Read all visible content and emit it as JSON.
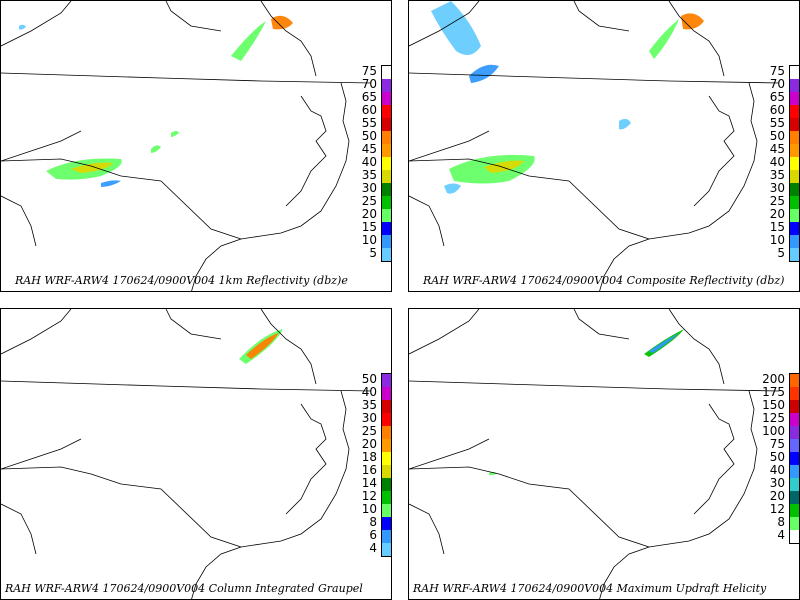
{
  "panels": [
    {
      "id": "p0",
      "caption": "RAH WRF-ARW4 170624/0900V004  1km Reflectivity (dbz)e",
      "legend": {
        "labels": [
          "75",
          "70",
          "65",
          "60",
          "55",
          "50",
          "45",
          "40",
          "35",
          "30",
          "25",
          "20",
          "15",
          "10",
          "5"
        ],
        "colors": [
          "#ffffff",
          "#8a2be2",
          "#cc00cc",
          "#ff0000",
          "#d60000",
          "#ff7f00",
          "#ff9900",
          "#ffff00",
          "#d9d900",
          "#008000",
          "#00c000",
          "#66ff66",
          "#0000ff",
          "#3399ff",
          "#66ccff"
        ]
      }
    },
    {
      "id": "p1",
      "caption": "RAH WRF-ARW4 170624/0900V004  Composite Reflectivity (dbz)",
      "legend": {
        "labels": [
          "75",
          "70",
          "65",
          "60",
          "55",
          "50",
          "45",
          "40",
          "35",
          "30",
          "25",
          "20",
          "15",
          "10",
          "5"
        ],
        "colors": [
          "#ffffff",
          "#8a2be2",
          "#cc00cc",
          "#ff0000",
          "#d60000",
          "#ff7f00",
          "#ff9900",
          "#ffff00",
          "#d9d900",
          "#008000",
          "#00c000",
          "#66ff66",
          "#0000ff",
          "#3399ff",
          "#66ccff"
        ]
      }
    },
    {
      "id": "p2",
      "caption": "RAH WRF-ARW4 170624/0900V004  Column Integrated Graupel",
      "legend": {
        "labels": [
          "50",
          "40",
          "35",
          "30",
          "25",
          "20",
          "18",
          "16",
          "14",
          "12",
          "10",
          "8",
          "6",
          "4"
        ],
        "colors": [
          "#8a2be2",
          "#cc00cc",
          "#d60000",
          "#ff0000",
          "#ff7f00",
          "#ff9900",
          "#ffff00",
          "#d9d900",
          "#008000",
          "#00c000",
          "#66ff66",
          "#0000ff",
          "#3399ff",
          "#66ccff"
        ]
      }
    },
    {
      "id": "p3",
      "caption": "RAH WRF-ARW4 170624/0900V004  Maximum Updraft Helicity",
      "legend": {
        "labels": [
          "200",
          "175",
          "150",
          "125",
          "100",
          "75",
          "50",
          "40",
          "30",
          "20",
          "12",
          "8",
          "4"
        ],
        "colors": [
          "#ff6600",
          "#ff3300",
          "#cc0000",
          "#cc00cc",
          "#8a2be2",
          "#6666ff",
          "#0000ff",
          "#3399ff",
          "#33cccc",
          "#006666",
          "#00c000",
          "#66ff66",
          "#ffffff"
        ]
      }
    }
  ]
}
